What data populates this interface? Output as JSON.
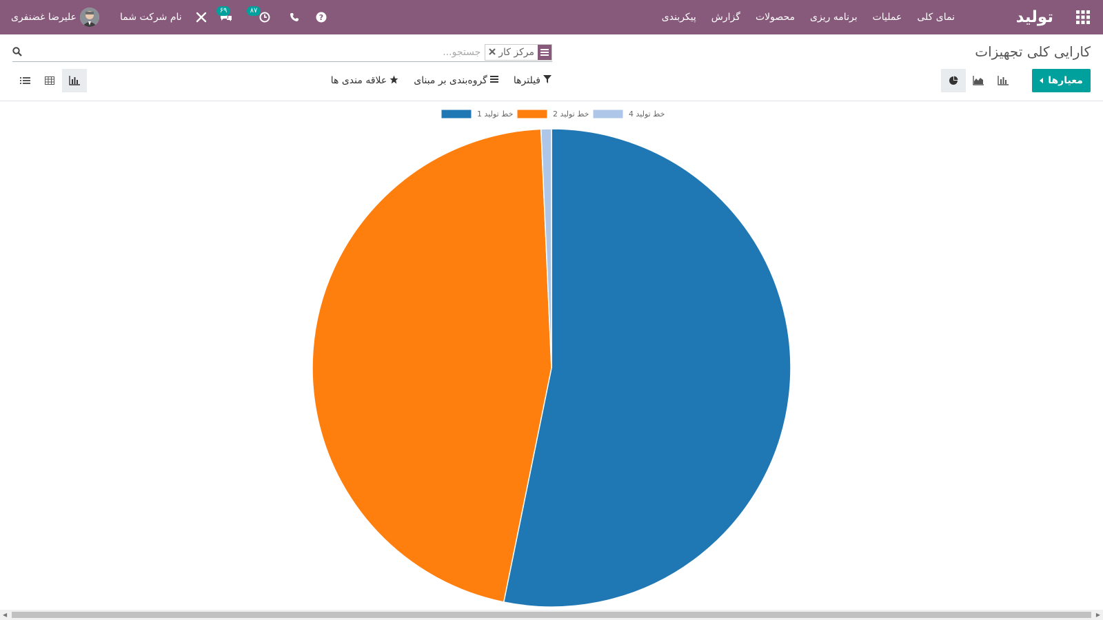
{
  "navbar": {
    "app_title": "تولید",
    "menu": [
      "نمای کلی",
      "عملیات",
      "برنامه ریزی",
      "محصولات",
      "گزارش",
      "پیکربندی"
    ],
    "company": "نام شرکت شما",
    "user": "علیرضا غضنفری",
    "activity_count": "۸۷",
    "message_count": "۶۹",
    "icons": [
      "apps-grid-icon",
      "help-icon",
      "phone-icon",
      "clock-icon",
      "chat-icon",
      "tools-icon"
    ]
  },
  "control_panel": {
    "breadcrumb": "کارایی کلی تجهیزات",
    "search_facet": "مرکز کار",
    "search_placeholder": "جستجو...",
    "measures_label": "معیارها",
    "filters_label": "فیلترها",
    "groupby_label": "گروه‌بندی بر مبنای",
    "favorites_label": "علاقه مندی ها"
  },
  "chart_data": {
    "type": "pie",
    "categories": [
      "خط تولید 1",
      "خط تولید 2",
      "خط تولید 4"
    ],
    "values": [
      53.2,
      46.1,
      0.7
    ],
    "colors": [
      "#1f77b4",
      "#ff7f0e",
      "#aec7e8"
    ],
    "legend": "top"
  }
}
